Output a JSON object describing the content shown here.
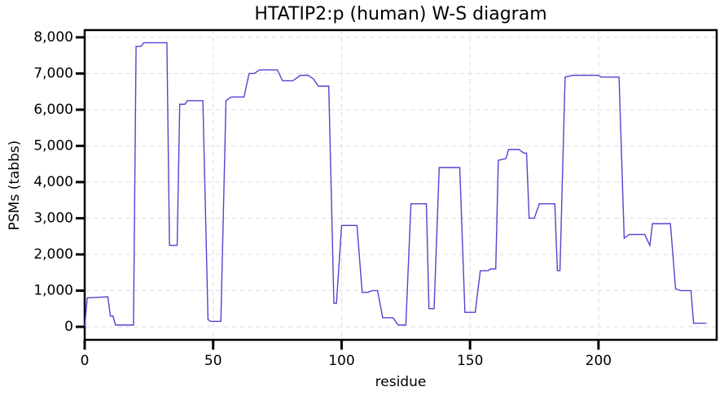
{
  "chart_data": {
    "type": "line",
    "title": "HTATIP2:p (human) W-S diagram",
    "x_label": "residue",
    "y_label": "PSMs (tabbs)",
    "x": [
      0,
      1,
      9,
      10,
      11,
      12,
      19,
      20,
      22,
      23,
      32,
      33,
      36,
      37,
      39,
      40,
      46,
      48,
      49,
      53,
      55,
      57,
      62,
      64,
      66,
      68,
      75,
      77,
      81,
      84,
      87,
      89,
      91,
      95,
      97,
      98,
      100,
      106,
      108,
      110,
      112,
      114,
      116,
      120,
      122,
      125,
      127,
      133,
      134,
      136,
      138,
      146,
      148,
      152,
      154,
      157,
      158,
      160,
      161,
      164,
      165,
      169,
      171,
      172,
      173,
      175,
      177,
      183,
      184,
      185,
      187,
      190,
      200,
      201,
      208,
      210,
      212,
      218,
      219,
      220,
      221,
      228,
      230,
      232,
      236,
      237,
      242
    ],
    "series": [
      {
        "name": "PSMs",
        "color": "#5b3fd1",
        "values": [
          0,
          800,
          830,
          300,
          300,
          50,
          50,
          7750,
          7750,
          7850,
          7850,
          2250,
          2250,
          6150,
          6150,
          6250,
          6250,
          200,
          150,
          150,
          6250,
          6350,
          6350,
          7000,
          7000,
          7100,
          7100,
          6800,
          6800,
          6950,
          6950,
          6850,
          6650,
          6650,
          650,
          650,
          2800,
          2800,
          950,
          950,
          1000,
          1000,
          250,
          250,
          50,
          50,
          3400,
          3400,
          500,
          500,
          4400,
          4400,
          400,
          400,
          1550,
          1550,
          1600,
          1600,
          4600,
          4650,
          4900,
          4900,
          4800,
          4800,
          3000,
          3000,
          3400,
          3400,
          1550,
          1550,
          6900,
          6950,
          6950,
          6900,
          6900,
          2450,
          2550,
          2550,
          2400,
          2250,
          2850,
          2850,
          1050,
          1000,
          1000,
          100,
          100
        ]
      }
    ],
    "xlim": [
      0,
      246
    ],
    "ylim": [
      -360,
      8200
    ],
    "xticks": [
      0,
      50,
      100,
      150,
      200
    ],
    "yticks": [
      0,
      {
        "value": 1000,
        "label": "1,000"
      },
      {
        "value": 2000,
        "label": "2,000"
      },
      {
        "value": 3000,
        "label": "3,000"
      },
      {
        "value": 4000,
        "label": "4,000"
      },
      {
        "value": 5000,
        "label": "5,000"
      },
      {
        "value": 6000,
        "label": "6,000"
      },
      {
        "value": 7000,
        "label": "7,000"
      },
      {
        "value": 8000,
        "label": "8,000"
      }
    ],
    "grid": true
  }
}
